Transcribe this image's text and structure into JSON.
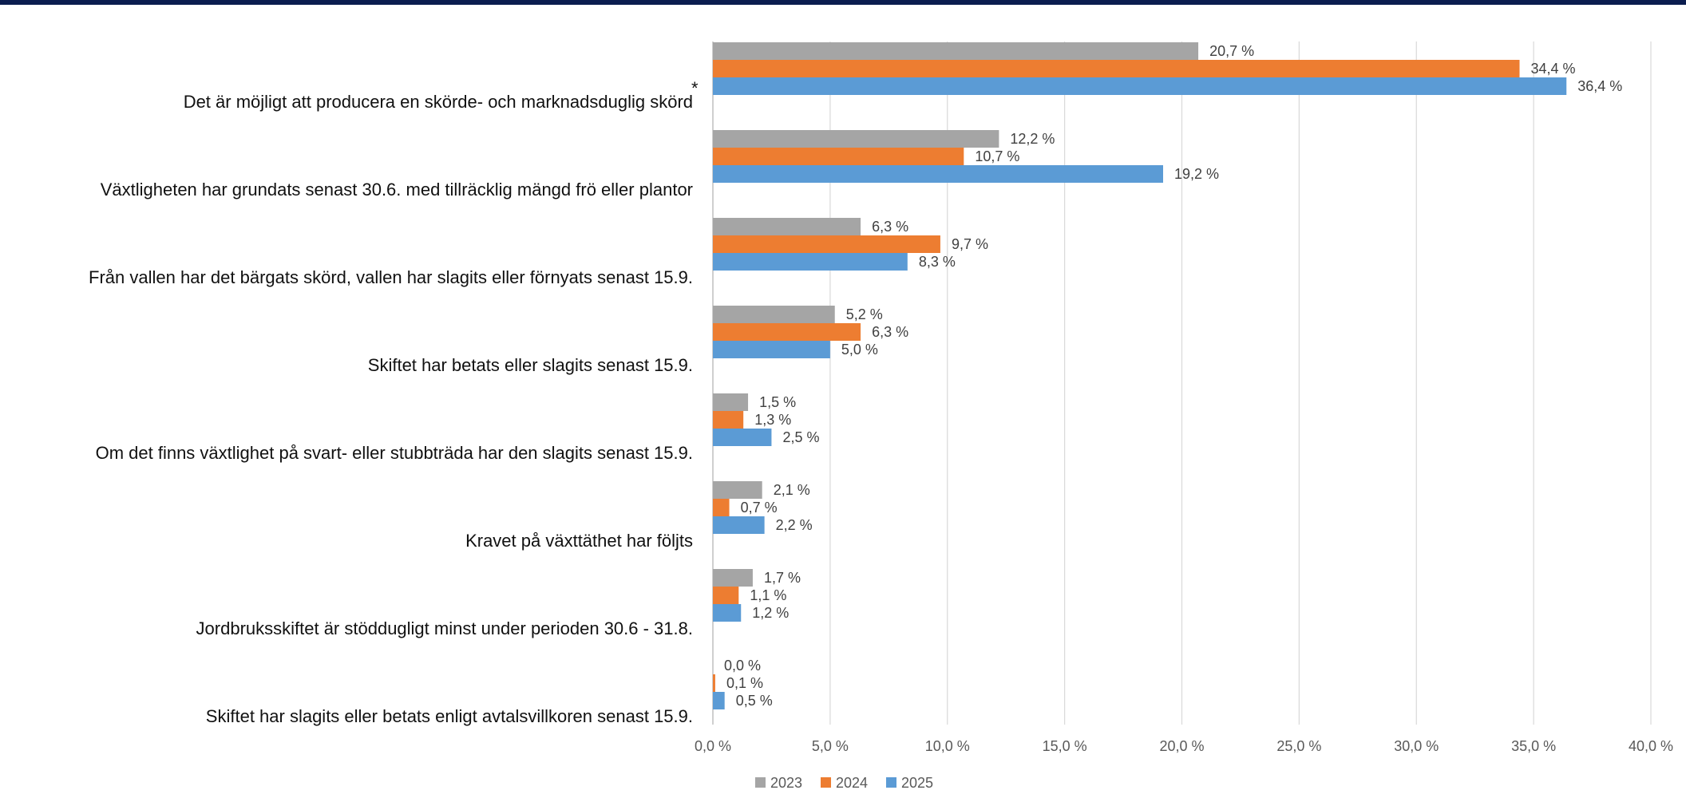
{
  "chart_data": {
    "type": "bar",
    "orientation": "horizontal",
    "title": "",
    "xlabel": "",
    "ylabel": "",
    "xlim": [
      0,
      40
    ],
    "x_ticks": [
      "0,0 %",
      "5,0 %",
      "10,0 %",
      "15,0 %",
      "20,0 %",
      "25,0 %",
      "30,0 %",
      "35,0 %",
      "40,0 %"
    ],
    "grid": true,
    "legend_position": "bottom",
    "categories": [
      "Det är möjligt att producera en skörde- och marknadsduglig skörd",
      "Växtligheten har grundats senast 30.6. med tillräcklig mängd frö eller plantor",
      "Från vallen har det bärgats skörd, vallen har slagits eller förnyats senast 15.9.",
      "Skiftet har betats eller slagits senast 15.9.",
      "Om det finns växtlighet på svart- eller stubbträda har den slagits senast 15.9.",
      "Kravet på växttäthet har följts",
      "Jordbruksskiftet är stöddugligt minst under perioden 30.6 - 31.8.",
      "Skiftet har slagits eller betats enligt avtalsvillkoren senast 15.9."
    ],
    "series": [
      {
        "name": "2023",
        "color": "#a5a5a5",
        "values": [
          20.7,
          12.2,
          6.3,
          5.2,
          1.5,
          2.1,
          1.7,
          0.0
        ],
        "labels": [
          "20,7 %",
          "12,2 %",
          "6,3 %",
          "5,2 %",
          "1,5 %",
          "2,1 %",
          "1,7 %",
          "0,0 %"
        ]
      },
      {
        "name": "2024",
        "color": "#ed7d31",
        "values": [
          34.4,
          10.7,
          9.7,
          6.3,
          1.3,
          0.7,
          1.1,
          0.1
        ],
        "labels": [
          "34,4 %",
          "10,7 %",
          "9,7 %",
          "6,3 %",
          "1,3 %",
          "0,7 %",
          "1,1 %",
          "0,1 %"
        ]
      },
      {
        "name": "2025",
        "color": "#5b9bd5",
        "values": [
          36.4,
          19.2,
          8.3,
          5.0,
          2.5,
          2.2,
          1.2,
          0.5
        ],
        "labels": [
          "36,4 %",
          "19,2 %",
          "8,3 %",
          "5,0 %",
          "2,5 %",
          "2,2 %",
          "1,2 %",
          "0,5 %"
        ]
      }
    ],
    "annotations": [
      "*"
    ]
  }
}
